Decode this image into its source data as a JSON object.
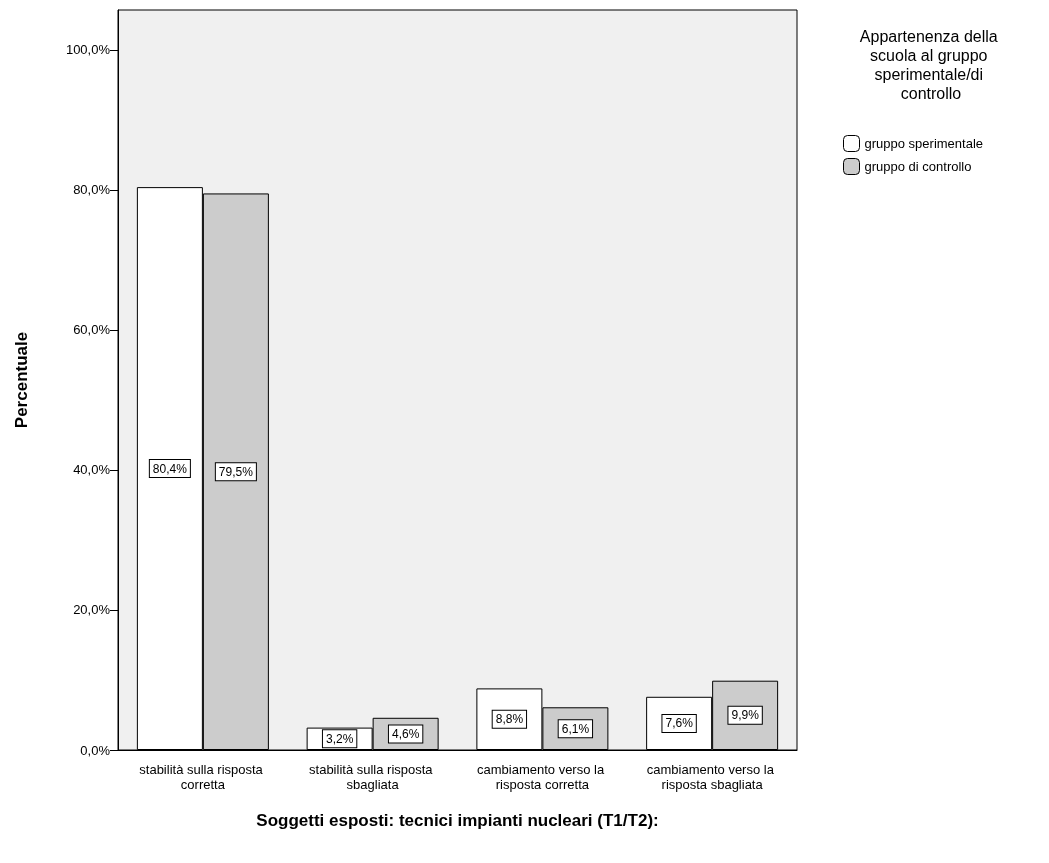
{
  "chart_data": {
    "type": "bar",
    "xlabel": "Soggetti esposti: tecnici impianti nucleari (T1/T2):",
    "ylabel": "Percentuale",
    "legend_title": "Appartenenza della scuola al gruppo sperimentale/di controllo",
    "categories": [
      "stabilità sulla risposta corretta",
      "stabilità sulla risposta sbagliata",
      "cambiamento verso la risposta corretta",
      "cambiamento verso la risposta sbagliata"
    ],
    "series": [
      {
        "name": "gruppo sperimentale",
        "color": "#ffffff",
        "values": [
          80.4,
          3.2,
          8.8,
          7.6
        ],
        "value_labels": [
          "80,4%",
          "3,2%",
          "8,8%",
          "7,6%"
        ]
      },
      {
        "name": "gruppo di controllo",
        "color": "#cccccc",
        "values": [
          79.5,
          4.6,
          6.1,
          9.9
        ],
        "value_labels": [
          "79,5%",
          "4,6%",
          "6,1%",
          "9,9%"
        ]
      }
    ],
    "ylim": [
      0,
      105.7
    ],
    "yticks": [
      {
        "value": 0,
        "label": "0,0%"
      },
      {
        "value": 20,
        "label": "20,0%"
      },
      {
        "value": 40,
        "label": "40,0%"
      },
      {
        "value": 60,
        "label": "60,0%"
      },
      {
        "value": 80,
        "label": "80,0%"
      },
      {
        "value": 100,
        "label": "100,0%"
      }
    ],
    "grid": false,
    "legend": "top right"
  }
}
